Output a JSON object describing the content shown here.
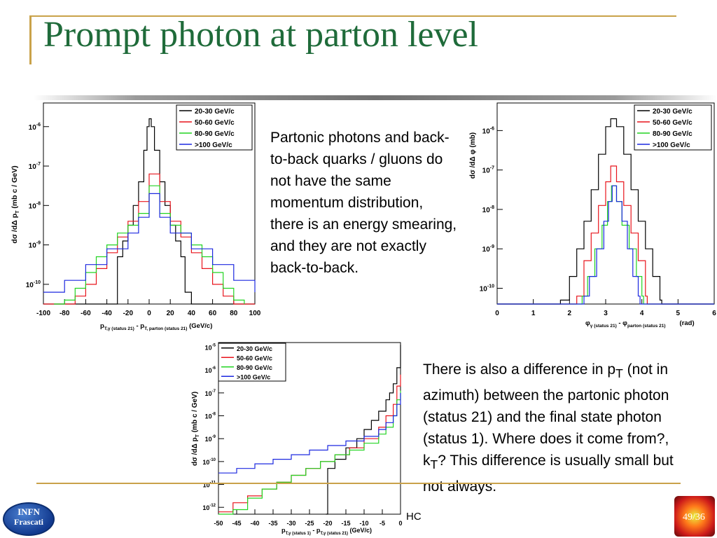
{
  "slide": {
    "title": "Prompt photon at parton level",
    "paragraph1": "Partonic photons and back-to-back quarks / gluons do not have the same momentum distribution, there is an energy smearing, and they are not exactly back-to-back.",
    "paragraph2_parts": [
      "There is also a difference in p",
      "T",
      " (not in azimuth) between the partonic photon (status 21) and the final state photon (status 1). Where does it come from?, k",
      "T",
      "? This difference is usually small but not always."
    ],
    "footer_text": "HC",
    "logo_line1": "INFN",
    "logo_line2": "Frascati",
    "page_number": "49/36"
  },
  "colors": {
    "title": "#1f6b3a",
    "accent": "#c9a24a",
    "s1": "#000000",
    "s2": "#e8141c",
    "s3": "#22d422",
    "s4": "#1c28e0"
  },
  "chart_data": [
    {
      "type": "line",
      "id": "chart-ptdiff",
      "ylabel": "dσ/dΔp_T (mb c / GeV)",
      "xlabel": "p_T,γ (status 21) - p_T,parton (status 21) (GeV/c)",
      "xlim": [
        -100,
        100
      ],
      "ylim_log": [
        -10.5,
        -5.4
      ],
      "xticks": [
        -100,
        -80,
        -60,
        -40,
        -20,
        0,
        20,
        40,
        60,
        80,
        100
      ],
      "yticks_exp": [
        -10,
        -9,
        -8,
        -7,
        -6
      ],
      "legend": [
        "20-30 GeV/c",
        "50-60 GeV/c",
        "80-90 GeV/c",
        ">100 GeV/c"
      ],
      "series": [
        {
          "name": "20-30 GeV/c",
          "x": [
            -100,
            -40,
            -34,
            -30,
            -25,
            -20,
            -15,
            -10,
            -5,
            -2,
            0,
            2,
            5,
            10,
            15,
            20,
            25,
            30,
            34,
            40,
            100
          ],
          "y": [
            -10.8,
            -10.8,
            -10.5,
            -9.3,
            -8.9,
            -8.5,
            -8.0,
            -7.4,
            -6.6,
            -6.0,
            -5.8,
            -6.0,
            -6.6,
            -7.4,
            -8.0,
            -8.5,
            -8.9,
            -9.3,
            -10.2,
            -10.8,
            -10.8
          ]
        },
        {
          "name": "50-60 GeV/c",
          "x": [
            -100,
            -80,
            -70,
            -60,
            -50,
            -40,
            -30,
            -20,
            -10,
            0,
            10,
            20,
            30,
            40,
            50,
            60,
            70,
            80,
            100
          ],
          "y": [
            -10.7,
            -10.6,
            -10.3,
            -10.0,
            -9.6,
            -9.2,
            -8.8,
            -8.4,
            -7.9,
            -7.2,
            -7.9,
            -8.4,
            -8.8,
            -9.2,
            -9.6,
            -10.0,
            -10.3,
            -10.6,
            -10.7
          ]
        },
        {
          "name": "80-90 GeV/c",
          "x": [
            -90,
            -80,
            -70,
            -60,
            -50,
            -40,
            -30,
            -20,
            -10,
            0,
            10,
            20,
            30,
            40,
            50,
            60,
            70,
            80,
            90
          ],
          "y": [
            -10.7,
            -10.4,
            -10.1,
            -9.7,
            -9.3,
            -9.0,
            -8.7,
            -8.5,
            -8.2,
            -7.5,
            -8.2,
            -8.5,
            -8.7,
            -9.0,
            -9.3,
            -9.7,
            -10.1,
            -10.4,
            -10.7
          ]
        },
        {
          "name": ">100 GeV/c",
          "x": [
            -100,
            -80,
            -60,
            -40,
            -20,
            -10,
            0,
            10,
            20,
            40,
            60,
            80,
            100
          ],
          "y": [
            -10.2,
            -9.9,
            -9.5,
            -9.1,
            -8.7,
            -8.3,
            -7.7,
            -8.3,
            -8.7,
            -9.1,
            -9.5,
            -9.9,
            -10.2
          ]
        }
      ]
    },
    {
      "type": "line",
      "id": "chart-phi",
      "ylabel": "dσ/dΔφ (mb)",
      "xlabel": "φ_γ (status 21) - φ_parton (status 21) (rad)",
      "xlim": [
        0,
        6
      ],
      "ylim_log": [
        -10.4,
        -5.3
      ],
      "xticks": [
        0,
        1,
        2,
        3,
        4,
        5,
        6
      ],
      "yticks_exp": [
        -10,
        -9,
        -8,
        -7,
        -6
      ],
      "legend": [
        "20-30 GeV/c",
        "50-60 GeV/c",
        "80-90 GeV/c",
        ">100 GeV/c"
      ],
      "series": [
        {
          "name": "20-30 GeV/c",
          "x": [
            0,
            1.7,
            1.75,
            2.0,
            2.2,
            2.4,
            2.6,
            2.8,
            3.0,
            3.14,
            3.3,
            3.5,
            3.7,
            3.9,
            4.1,
            4.3,
            4.5,
            4.55,
            6
          ],
          "y": [
            -10.5,
            -10.5,
            -10.3,
            -9.7,
            -9.0,
            -8.3,
            -7.5,
            -6.6,
            -5.9,
            -5.7,
            -5.9,
            -6.6,
            -7.5,
            -8.3,
            -9.0,
            -9.7,
            -10.3,
            -10.5,
            -10.5
          ]
        },
        {
          "name": "50-60 GeV/c",
          "x": [
            0,
            2.15,
            2.2,
            2.4,
            2.6,
            2.8,
            3.0,
            3.14,
            3.3,
            3.5,
            3.7,
            3.9,
            4.1,
            4.15,
            6
          ],
          "y": [
            -10.5,
            -10.5,
            -10.2,
            -9.3,
            -8.6,
            -7.9,
            -7.3,
            -6.9,
            -7.3,
            -7.9,
            -8.6,
            -9.3,
            -10.2,
            -10.5,
            -10.5
          ]
        },
        {
          "name": "80-90 GeV/c",
          "x": [
            0,
            2.3,
            2.35,
            2.5,
            2.7,
            2.9,
            3.05,
            3.16,
            3.3,
            3.45,
            3.65,
            3.85,
            4.0,
            4.05,
            6
          ],
          "y": [
            -10.5,
            -10.5,
            -10.2,
            -9.7,
            -9.0,
            -8.4,
            -7.8,
            -7.4,
            -7.8,
            -8.4,
            -9.0,
            -9.7,
            -10.2,
            -10.5,
            -10.5
          ]
        },
        {
          "name": ">100 GeV/c",
          "x": [
            0,
            2.35,
            2.4,
            2.55,
            2.75,
            2.95,
            3.08,
            3.18,
            3.3,
            3.45,
            3.6,
            3.75,
            3.9,
            3.95,
            6
          ],
          "y": [
            -10.5,
            -10.5,
            -10.2,
            -9.7,
            -9.0,
            -8.3,
            -7.8,
            -7.4,
            -7.8,
            -8.3,
            -9.0,
            -9.7,
            -10.2,
            -10.5,
            -10.5
          ]
        }
      ]
    },
    {
      "type": "line",
      "id": "chart-ptstatus",
      "ylabel": "dσ/dΔp_T (mb c / GeV)",
      "xlabel": "p_T,γ (status 1) - p_T,γ (status 21) (GeV/c)",
      "xlim": [
        -50,
        0
      ],
      "ylim_log": [
        -12.3,
        -4.8
      ],
      "xticks": [
        -50,
        -45,
        -40,
        -35,
        -30,
        -25,
        -20,
        -15,
        -10,
        -5,
        0
      ],
      "yticks_exp": [
        -12,
        -11,
        -10,
        -9,
        -8,
        -7,
        -6,
        -5
      ],
      "legend": [
        "20-30 GeV/c",
        "50-60 GeV/c",
        "80-90 GeV/c",
        ">100 GeV/c"
      ],
      "series": [
        {
          "name": "20-30 GeV/c",
          "x": [
            -20.5,
            -20,
            -18,
            -15,
            -12,
            -10,
            -8,
            -6,
            -4,
            -3,
            -2,
            -1,
            0
          ],
          "y": [
            -12.3,
            -10.3,
            -9.9,
            -9.4,
            -9.0,
            -8.6,
            -8.2,
            -7.8,
            -7.3,
            -7.0,
            -6.6,
            -5.9,
            -4.9
          ]
        },
        {
          "name": "50-60 GeV/c",
          "x": [
            -50,
            -46,
            -42,
            -38,
            -34,
            -30,
            -26,
            -22,
            -18,
            -14,
            -10,
            -6,
            -4,
            -2,
            -1,
            0
          ],
          "y": [
            -12.2,
            -11.8,
            -11.5,
            -11.2,
            -10.9,
            -10.6,
            -10.3,
            -10.0,
            -9.7,
            -9.4,
            -9.0,
            -8.5,
            -8.0,
            -7.5,
            -6.7,
            -6.2
          ]
        },
        {
          "name": "80-90 GeV/c",
          "x": [
            -50,
            -46,
            -42,
            -38,
            -34,
            -30,
            -26,
            -22,
            -18,
            -14,
            -10,
            -6,
            -4,
            -2,
            -1,
            0
          ],
          "y": [
            -12.3,
            -12.1,
            -11.6,
            -11.2,
            -10.9,
            -10.6,
            -10.3,
            -10.0,
            -9.7,
            -9.5,
            -9.2,
            -8.8,
            -8.5,
            -8.0,
            -7.3,
            -6.9
          ]
        },
        {
          "name": ">100 GeV/c",
          "x": [
            -50,
            -45,
            -40,
            -35,
            -30,
            -25,
            -20,
            -15,
            -10,
            -6,
            -4,
            -2,
            -1,
            0
          ],
          "y": [
            -10.5,
            -10.3,
            -10.1,
            -9.9,
            -9.7,
            -9.5,
            -9.3,
            -9.1,
            -8.9,
            -8.6,
            -8.3,
            -8.0,
            -7.5,
            -7.0
          ]
        }
      ]
    }
  ]
}
